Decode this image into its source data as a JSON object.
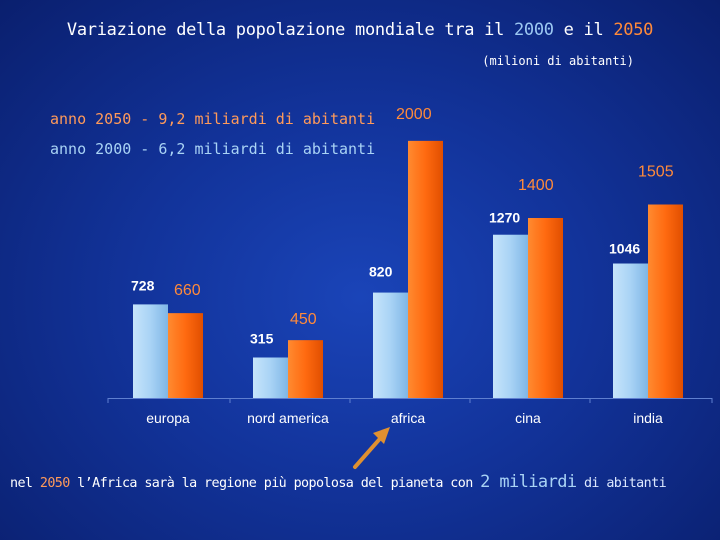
{
  "header": {
    "title_prefix": "Variazione della popolazione mondiale tra il ",
    "title_year_a": "2000",
    "title_mid": " e il ",
    "title_year_b": "2050",
    "subtitle": "(milioni di abitanti)"
  },
  "legend": {
    "line_2050": "anno 2050 - 9,2 miliardi di abitanti",
    "line_2000": "anno 2000 - 6,2 miliardi di abitanti"
  },
  "footer": {
    "p1": "nel ",
    "year": "2050",
    "p2": " l’Africa  sarà la regione più popolosa del pianeta con ",
    "big": "2 miliardi",
    "p3": " di abitanti"
  },
  "colors": {
    "series_2000": "#a9d3f5",
    "series_2050": "#ff6a10",
    "label_2050": "#ff8a3a",
    "background": "#12339a",
    "arrow": "#f0a040"
  },
  "chart_data": {
    "type": "bar",
    "categories": [
      "europa",
      "nord america",
      "africa",
      "cina",
      "india"
    ],
    "series": [
      {
        "values": [
          728,
          315,
          820,
          1270,
          1046
        ]
      },
      {
        "values": [
          660,
          450,
          2000,
          1400,
          1505
        ]
      }
    ],
    "title": "Variazione della popolazione mondiale tra il 2000 e il 2050",
    "ylim": [
      0,
      2100
    ],
    "grid": false,
    "legend": "top-left"
  }
}
